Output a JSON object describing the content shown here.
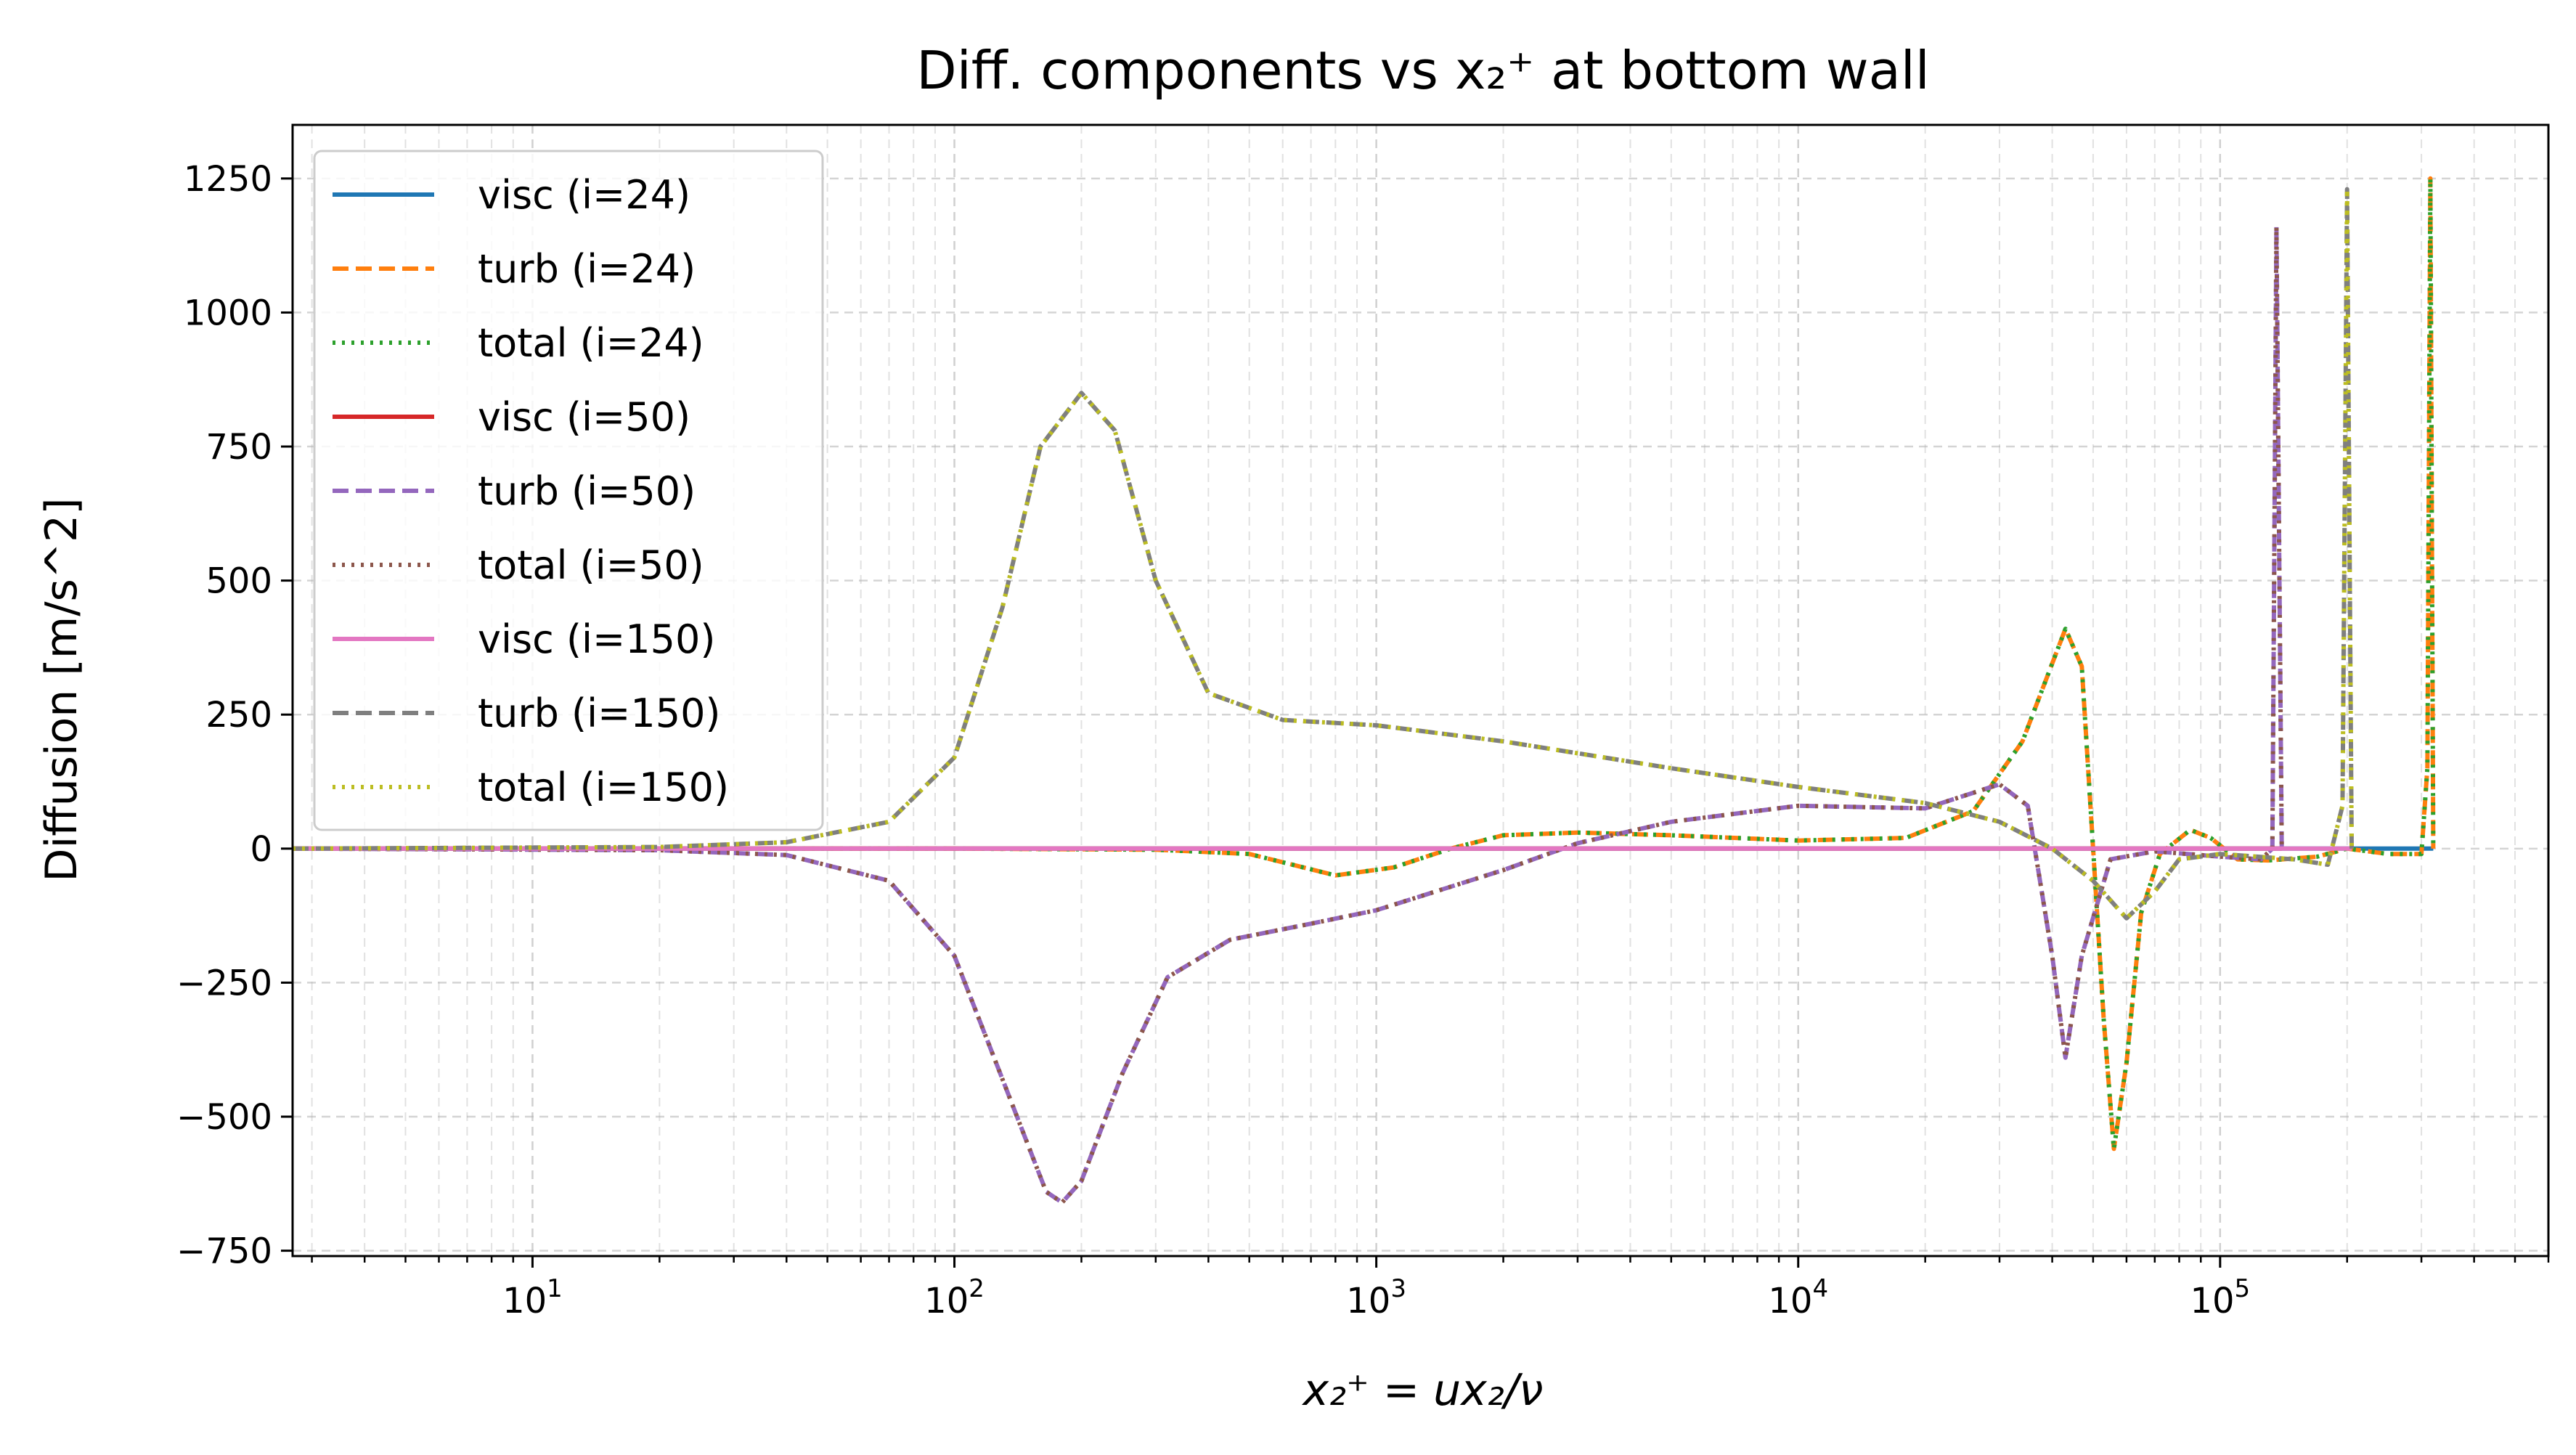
{
  "chart_data": {
    "type": "line",
    "title": "Diff. components vs x₂⁺ at bottom wall",
    "xlabel": "x₂⁺ = ux₂/ν",
    "ylabel": "Diffusion [m/s^2]",
    "xscale": "log",
    "xlim": [
      2.7,
      600000
    ],
    "ylim": [
      -760,
      1350
    ],
    "grid": true,
    "legend_position": "upper-left",
    "x_ticks": [
      {
        "value": 10,
        "base": "10",
        "exp": "1"
      },
      {
        "value": 100,
        "base": "10",
        "exp": "2"
      },
      {
        "value": 1000,
        "base": "10",
        "exp": "3"
      },
      {
        "value": 10000,
        "base": "10",
        "exp": "4"
      },
      {
        "value": 100000,
        "base": "10",
        "exp": "5"
      }
    ],
    "y_ticks": [
      {
        "value": 1250,
        "label": "1250"
      },
      {
        "value": 1000,
        "label": "1000"
      },
      {
        "value": 750,
        "label": "750"
      },
      {
        "value": 500,
        "label": "500"
      },
      {
        "value": 250,
        "label": "250"
      },
      {
        "value": 0,
        "label": "0"
      },
      {
        "value": -250,
        "label": "−250"
      },
      {
        "value": -500,
        "label": "−500"
      },
      {
        "value": -750,
        "label": "−750"
      }
    ],
    "series": [
      {
        "name": "visc (i=24)",
        "color": "#1f77b4",
        "dash": "solid",
        "points": [
          [
            2.7,
            0
          ],
          [
            1000,
            0
          ],
          [
            100000,
            0
          ],
          [
            320000,
            0
          ]
        ]
      },
      {
        "name": "turb (i=24)",
        "color": "#ff7f0e",
        "dash": "dashed",
        "points": [
          [
            2.7,
            0
          ],
          [
            100,
            0
          ],
          [
            300,
            -2
          ],
          [
            500,
            -10
          ],
          [
            800,
            -50
          ],
          [
            1100,
            -35
          ],
          [
            1500,
            0
          ],
          [
            2000,
            25
          ],
          [
            3000,
            30
          ],
          [
            5000,
            25
          ],
          [
            10000,
            15
          ],
          [
            18000,
            20
          ],
          [
            26000,
            70
          ],
          [
            34000,
            200
          ],
          [
            43000,
            410
          ],
          [
            47000,
            340
          ],
          [
            50000,
            0
          ],
          [
            53000,
            -320
          ],
          [
            56000,
            -560
          ],
          [
            60000,
            -400
          ],
          [
            65000,
            -120
          ],
          [
            72000,
            -10
          ],
          [
            85000,
            35
          ],
          [
            95000,
            20
          ],
          [
            110000,
            -20
          ],
          [
            130000,
            -22
          ],
          [
            170000,
            -15
          ],
          [
            200000,
            0
          ],
          [
            250000,
            -10
          ],
          [
            300000,
            -10
          ],
          [
            310000,
            150
          ],
          [
            315000,
            1250
          ],
          [
            320000,
            0
          ]
        ]
      },
      {
        "name": "total (i=24)",
        "color": "#2ca02c",
        "dash": "dotted",
        "points": [
          [
            2.7,
            0
          ],
          [
            100,
            0
          ],
          [
            300,
            -2
          ],
          [
            500,
            -10
          ],
          [
            800,
            -50
          ],
          [
            1100,
            -35
          ],
          [
            1500,
            0
          ],
          [
            2000,
            25
          ],
          [
            3000,
            30
          ],
          [
            5000,
            25
          ],
          [
            10000,
            15
          ],
          [
            18000,
            20
          ],
          [
            26000,
            70
          ],
          [
            34000,
            200
          ],
          [
            43000,
            410
          ],
          [
            47000,
            340
          ],
          [
            50000,
            0
          ],
          [
            53000,
            -320
          ],
          [
            56000,
            -560
          ],
          [
            60000,
            -400
          ],
          [
            65000,
            -120
          ],
          [
            72000,
            -10
          ],
          [
            85000,
            35
          ],
          [
            95000,
            20
          ],
          [
            110000,
            -20
          ],
          [
            130000,
            -22
          ],
          [
            170000,
            -15
          ],
          [
            200000,
            0
          ],
          [
            250000,
            -10
          ],
          [
            300000,
            -10
          ],
          [
            310000,
            150
          ],
          [
            315000,
            1250
          ],
          [
            320000,
            0
          ]
        ]
      },
      {
        "name": "visc (i=50)",
        "color": "#d62728",
        "dash": "solid",
        "points": [
          [
            2.7,
            0
          ],
          [
            1000,
            0
          ],
          [
            100000,
            0
          ],
          [
            140000,
            0
          ]
        ]
      },
      {
        "name": "turb (i=50)",
        "color": "#9467bd",
        "dash": "dashed",
        "points": [
          [
            2.7,
            0
          ],
          [
            20,
            -3
          ],
          [
            40,
            -12
          ],
          [
            70,
            -60
          ],
          [
            100,
            -200
          ],
          [
            130,
            -430
          ],
          [
            165,
            -640
          ],
          [
            180,
            -660
          ],
          [
            200,
            -620
          ],
          [
            250,
            -420
          ],
          [
            320,
            -240
          ],
          [
            450,
            -170
          ],
          [
            700,
            -140
          ],
          [
            1000,
            -115
          ],
          [
            2000,
            -40
          ],
          [
            3000,
            10
          ],
          [
            5000,
            50
          ],
          [
            10000,
            80
          ],
          [
            20000,
            75
          ],
          [
            30000,
            120
          ],
          [
            35000,
            80
          ],
          [
            40000,
            -200
          ],
          [
            43000,
            -390
          ],
          [
            47000,
            -200
          ],
          [
            55000,
            -20
          ],
          [
            70000,
            -5
          ],
          [
            100000,
            -15
          ],
          [
            125000,
            -20
          ],
          [
            133000,
            0
          ],
          [
            136000,
            1160
          ],
          [
            140000,
            0
          ]
        ]
      },
      {
        "name": "total (i=50)",
        "color": "#8c564b",
        "dash": "dotted",
        "points": [
          [
            2.7,
            0
          ],
          [
            20,
            -3
          ],
          [
            40,
            -12
          ],
          [
            70,
            -60
          ],
          [
            100,
            -200
          ],
          [
            130,
            -430
          ],
          [
            165,
            -640
          ],
          [
            180,
            -660
          ],
          [
            200,
            -620
          ],
          [
            250,
            -420
          ],
          [
            320,
            -240
          ],
          [
            450,
            -170
          ],
          [
            700,
            -140
          ],
          [
            1000,
            -115
          ],
          [
            2000,
            -40
          ],
          [
            3000,
            10
          ],
          [
            5000,
            50
          ],
          [
            10000,
            80
          ],
          [
            20000,
            75
          ],
          [
            30000,
            120
          ],
          [
            35000,
            80
          ],
          [
            40000,
            -200
          ],
          [
            43000,
            -390
          ],
          [
            47000,
            -200
          ],
          [
            55000,
            -20
          ],
          [
            70000,
            -5
          ],
          [
            100000,
            -15
          ],
          [
            125000,
            -20
          ],
          [
            133000,
            0
          ],
          [
            136000,
            1160
          ],
          [
            140000,
            0
          ]
        ]
      },
      {
        "name": "visc (i=150)",
        "color": "#e377c2",
        "dash": "solid",
        "points": [
          [
            2.7,
            0
          ],
          [
            1000,
            0
          ],
          [
            100000,
            0
          ],
          [
            205000,
            0
          ]
        ]
      },
      {
        "name": "turb (i=150)",
        "color": "#7f7f7f",
        "dash": "dashed",
        "points": [
          [
            2.7,
            0
          ],
          [
            20,
            3
          ],
          [
            40,
            12
          ],
          [
            70,
            50
          ],
          [
            100,
            170
          ],
          [
            130,
            450
          ],
          [
            160,
            750
          ],
          [
            200,
            850
          ],
          [
            240,
            780
          ],
          [
            300,
            500
          ],
          [
            400,
            290
          ],
          [
            600,
            240
          ],
          [
            1000,
            230
          ],
          [
            2000,
            200
          ],
          [
            5000,
            150
          ],
          [
            10000,
            115
          ],
          [
            20000,
            85
          ],
          [
            30000,
            50
          ],
          [
            40000,
            0
          ],
          [
            50000,
            -60
          ],
          [
            60000,
            -130
          ],
          [
            70000,
            -80
          ],
          [
            80000,
            -20
          ],
          [
            100000,
            -10
          ],
          [
            150000,
            -20
          ],
          [
            180000,
            -30
          ],
          [
            195000,
            80
          ],
          [
            200000,
            1230
          ],
          [
            205000,
            0
          ]
        ]
      },
      {
        "name": "total (i=150)",
        "color": "#bcbd22",
        "dash": "dotted",
        "points": [
          [
            2.7,
            0
          ],
          [
            20,
            3
          ],
          [
            40,
            12
          ],
          [
            70,
            50
          ],
          [
            100,
            170
          ],
          [
            130,
            450
          ],
          [
            160,
            750
          ],
          [
            200,
            850
          ],
          [
            240,
            780
          ],
          [
            300,
            500
          ],
          [
            400,
            290
          ],
          [
            600,
            240
          ],
          [
            1000,
            230
          ],
          [
            2000,
            200
          ],
          [
            5000,
            150
          ],
          [
            10000,
            115
          ],
          [
            20000,
            85
          ],
          [
            30000,
            50
          ],
          [
            40000,
            0
          ],
          [
            50000,
            -60
          ],
          [
            60000,
            -130
          ],
          [
            70000,
            -80
          ],
          [
            80000,
            -20
          ],
          [
            100000,
            -10
          ],
          [
            150000,
            -20
          ],
          [
            180000,
            -30
          ],
          [
            195000,
            80
          ],
          [
            200000,
            1230
          ],
          [
            205000,
            0
          ]
        ]
      }
    ]
  }
}
